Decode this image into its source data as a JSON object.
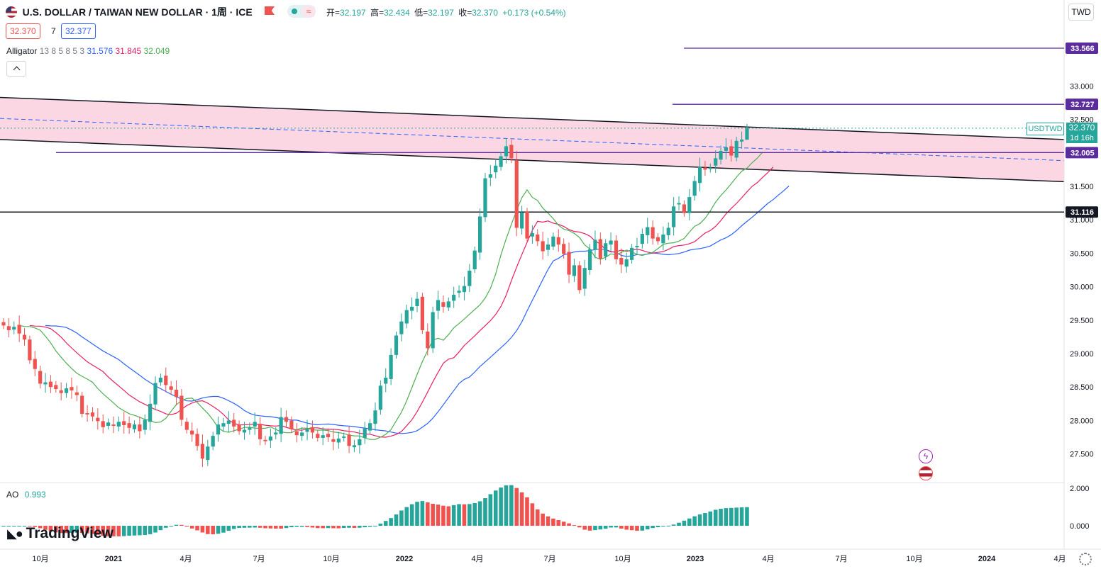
{
  "header": {
    "symbol_title": "U.S. DOLLAR / TAIWAN NEW DOLLAR · 1周 · ICE",
    "ohlc": {
      "open_label": "开=",
      "open": "32.197",
      "high_label": "高=",
      "high": "32.434",
      "low_label": "低=",
      "low": "32.197",
      "close_label": "收=",
      "close": "32.370",
      "change": "+0.173 (+0.54%)"
    },
    "sell_price": "32.370",
    "spread": "7",
    "buy_price": "32.377",
    "alligator": {
      "label": "Alligator",
      "params": "13 8 5 8 5 3",
      "jaw": "31.576",
      "teeth": "31.845",
      "lips": "32.049"
    },
    "currency_button": "TWD",
    "collapse_icon": "chevron-up-icon"
  },
  "price_axis": {
    "ticks": [
      "33.000",
      "32.500",
      "31.500",
      "31.000",
      "30.500",
      "30.000",
      "29.500",
      "29.000",
      "28.500",
      "28.000",
      "27.500"
    ],
    "labels": [
      {
        "text": "33.566",
        "value": 33.566,
        "color": "#5b2c9e"
      },
      {
        "text": "32.727",
        "value": 32.727,
        "color": "#5b2c9e"
      },
      {
        "text": "32.005",
        "value": 32.005,
        "color": "#5b2c9e"
      },
      {
        "text": "31.116",
        "value": 31.116,
        "color": "#131722"
      }
    ],
    "symbol_tag": {
      "symbol": "USDTWD",
      "price": "32.370",
      "countdown": "1d 16h",
      "color": "#26a69a"
    }
  },
  "ao_pane": {
    "label": "AO",
    "value": "0.993",
    "ticks": [
      "2.000",
      "0.000"
    ]
  },
  "time_axis": [
    "10月",
    "2021",
    "4月",
    "7月",
    "10月",
    "2022",
    "4月",
    "7月",
    "10月",
    "2023",
    "4月",
    "7月",
    "10月",
    "2024",
    "4月"
  ],
  "watermark": "TradingView",
  "event_icons": [
    "lightning-icon",
    "us-flag-icon"
  ],
  "colors": {
    "up": "#26a69a",
    "down": "#ef5350",
    "jaw": "#2962ff",
    "teeth": "#e91e63",
    "lips": "#4caf50",
    "channel_fill": "#f8bbd0",
    "horizontal": "#5b2c9e"
  },
  "chart_data": {
    "type": "candlestick",
    "symbol": "USDTWD",
    "interval": "1W",
    "ylim": [
      27.1,
      33.75
    ],
    "ao_ylim": [
      -0.35,
      2.3
    ],
    "x_time_labels": [
      "10月",
      "2021",
      "4月",
      "7月",
      "10月",
      "2022",
      "4月",
      "7月",
      "10月",
      "2023",
      "4月",
      "7月",
      "10月",
      "2024",
      "4月"
    ],
    "candles_close": [
      29.42,
      29.35,
      29.4,
      29.3,
      29.21,
      28.9,
      28.77,
      28.55,
      28.57,
      28.5,
      28.47,
      28.41,
      28.48,
      28.45,
      28.38,
      28.1,
      28.09,
      28.06,
      27.99,
      27.9,
      27.97,
      27.92,
      27.98,
      27.93,
      27.89,
      27.94,
      27.84,
      28.01,
      28.25,
      28.56,
      28.64,
      28.53,
      28.46,
      28.35,
      28.01,
      27.86,
      27.79,
      27.62,
      27.43,
      27.61,
      27.77,
      27.94,
      27.96,
      28.0,
      27.91,
      27.84,
      27.86,
      27.89,
      27.98,
      27.72,
      27.69,
      27.76,
      27.82,
      28.05,
      27.98,
      27.87,
      27.78,
      27.82,
      27.87,
      27.82,
      27.74,
      27.78,
      27.75,
      27.68,
      27.73,
      27.76,
      27.62,
      27.63,
      27.72,
      27.88,
      27.96,
      28.15,
      28.52,
      28.64,
      28.98,
      29.27,
      29.48,
      29.65,
      29.7,
      29.82,
      29.35,
      29.08,
      29.62,
      29.8,
      29.7,
      29.78,
      29.88,
      29.94,
      30.01,
      30.24,
      30.54,
      31.05,
      31.62,
      31.68,
      31.81,
      31.95,
      32.1,
      31.92,
      30.88,
      31.11,
      30.72,
      30.8,
      30.68,
      30.53,
      30.63,
      30.75,
      30.63,
      30.49,
      30.18,
      30.32,
      29.95,
      30.28,
      30.56,
      30.7,
      30.42,
      30.65,
      30.69,
      30.41,
      30.33,
      30.41,
      30.58,
      30.61,
      30.79,
      30.89,
      30.72,
      30.68,
      30.78,
      30.88,
      31.2,
      31.25,
      31.1,
      31.34,
      31.58,
      31.79,
      31.75,
      31.78,
      31.92,
      32.03,
      32.08,
      31.96,
      32.18,
      32.2,
      32.37
    ],
    "alligator": {
      "jaw": {
        "name": "Alligator Jaw",
        "last": 31.576
      },
      "teeth": {
        "name": "Alligator Teeth",
        "last": 31.845
      },
      "lips": {
        "name": "Alligator Lips",
        "last": 32.049
      }
    },
    "trend_channel": {
      "upper": [
        32.83,
        32.2
      ],
      "lower": [
        32.2,
        31.57
      ]
    },
    "horizontal_levels": [
      33.566,
      32.727,
      32.005,
      31.116
    ],
    "last_price": 32.37,
    "ao": {
      "name": "AO",
      "last": 0.993
    }
  }
}
